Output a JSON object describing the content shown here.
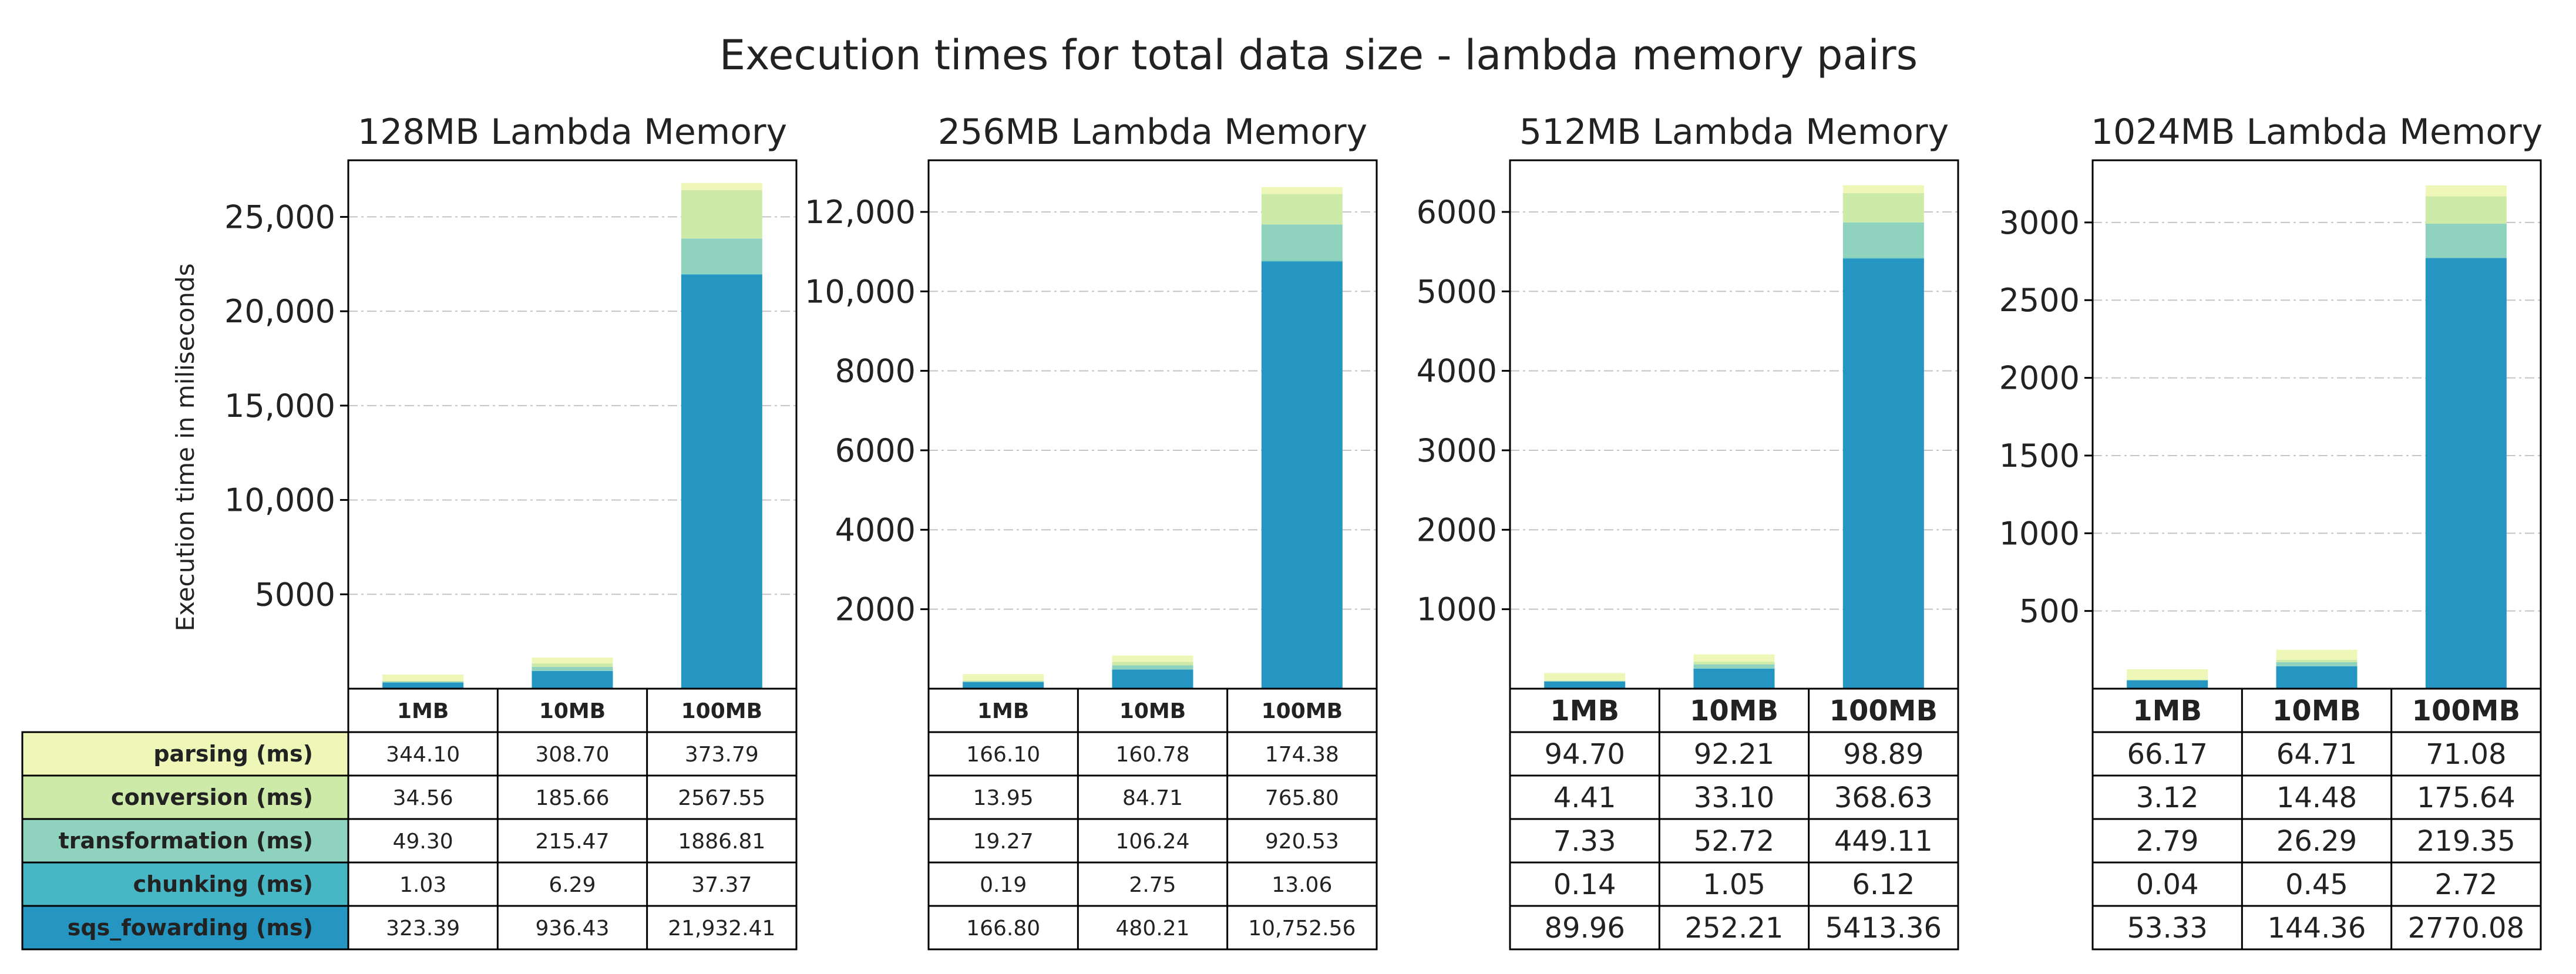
{
  "chart_data": {
    "type": "bar",
    "stacked": true,
    "title": "Execution times for total data size - lambda memory pairs",
    "ylabel": "Execution time in miliseconds",
    "categories": [
      "1MB",
      "10MB",
      "100MB"
    ],
    "stages": [
      "parsing (ms)",
      "conversion (ms)",
      "transformation (ms)",
      "chunking (ms)",
      "sqs_fowarding (ms)"
    ],
    "colors": {
      "parsing (ms)": "#eef7b8",
      "conversion (ms)": "#cdeaa9",
      "transformation (ms)": "#8fd2bd",
      "chunking (ms)": "#47b6c5",
      "sqs_fowarding (ms)": "#2596c1"
    },
    "panels": [
      {
        "title": "128MB Lambda Memory",
        "ylim": [
          0,
          28000
        ],
        "yticks": [
          5000,
          10000,
          15000,
          20000,
          25000
        ],
        "ytick_labels": [
          "5000",
          "10,000",
          "15,000",
          "20,000",
          "25,000"
        ],
        "series": [
          {
            "name": "sqs_fowarding (ms)",
            "values": [
              323.39,
              936.43,
              21932.41
            ],
            "labels": [
              "323.39",
              "936.43",
              "21,932.41"
            ]
          },
          {
            "name": "chunking (ms)",
            "values": [
              1.03,
              6.29,
              37.37
            ],
            "labels": [
              "1.03",
              "6.29",
              "37.37"
            ]
          },
          {
            "name": "transformation (ms)",
            "values": [
              49.3,
              215.47,
              1886.81
            ],
            "labels": [
              "49.30",
              "215.47",
              "1886.81"
            ]
          },
          {
            "name": "conversion (ms)",
            "values": [
              34.56,
              185.66,
              2567.55
            ],
            "labels": [
              "34.56",
              "185.66",
              "2567.55"
            ]
          },
          {
            "name": "parsing (ms)",
            "values": [
              344.1,
              308.7,
              373.79
            ],
            "labels": [
              "344.10",
              "308.70",
              "373.79"
            ]
          }
        ]
      },
      {
        "title": "256MB Lambda Memory",
        "ylim": [
          0,
          13300
        ],
        "yticks": [
          2000,
          4000,
          6000,
          8000,
          10000,
          12000
        ],
        "ytick_labels": [
          "2000",
          "4000",
          "6000",
          "8000",
          "10,000",
          "12,000"
        ],
        "series": [
          {
            "name": "sqs_fowarding (ms)",
            "values": [
              166.8,
              480.21,
              10752.56
            ],
            "labels": [
              "166.80",
              "480.21",
              "10,752.56"
            ]
          },
          {
            "name": "chunking (ms)",
            "values": [
              0.19,
              2.75,
              13.06
            ],
            "labels": [
              "0.19",
              "2.75",
              "13.06"
            ]
          },
          {
            "name": "transformation (ms)",
            "values": [
              19.27,
              106.24,
              920.53
            ],
            "labels": [
              "19.27",
              "106.24",
              "920.53"
            ]
          },
          {
            "name": "conversion (ms)",
            "values": [
              13.95,
              84.71,
              765.8
            ],
            "labels": [
              "13.95",
              "84.71",
              "765.80"
            ]
          },
          {
            "name": "parsing (ms)",
            "values": [
              166.1,
              160.78,
              174.38
            ],
            "labels": [
              "166.10",
              "160.78",
              "174.38"
            ]
          }
        ]
      },
      {
        "title": "512MB Lambda Memory",
        "ylim": [
          0,
          6650
        ],
        "yticks": [
          1000,
          2000,
          3000,
          4000,
          5000,
          6000
        ],
        "ytick_labels": [
          "1000",
          "2000",
          "3000",
          "4000",
          "5000",
          "6000"
        ],
        "series": [
          {
            "name": "sqs_fowarding (ms)",
            "values": [
              89.96,
              252.21,
              5413.36
            ],
            "labels": [
              "89.96",
              "252.21",
              "5413.36"
            ]
          },
          {
            "name": "chunking (ms)",
            "values": [
              0.14,
              1.05,
              6.12
            ],
            "labels": [
              "0.14",
              "1.05",
              "6.12"
            ]
          },
          {
            "name": "transformation (ms)",
            "values": [
              7.33,
              52.72,
              449.11
            ],
            "labels": [
              "7.33",
              "52.72",
              "449.11"
            ]
          },
          {
            "name": "conversion (ms)",
            "values": [
              4.41,
              33.1,
              368.63
            ],
            "labels": [
              "4.41",
              "33.10",
              "368.63"
            ]
          },
          {
            "name": "parsing (ms)",
            "values": [
              94.7,
              92.21,
              98.89
            ],
            "labels": [
              "94.70",
              "92.21",
              "98.89"
            ]
          }
        ]
      },
      {
        "title": "1024MB Lambda Memory",
        "ylim": [
          0,
          3400
        ],
        "yticks": [
          500,
          1000,
          1500,
          2000,
          2500,
          3000
        ],
        "ytick_labels": [
          "500",
          "1000",
          "1500",
          "2000",
          "2500",
          "3000"
        ],
        "series": [
          {
            "name": "sqs_fowarding (ms)",
            "values": [
              53.33,
              144.36,
              2770.08
            ],
            "labels": [
              "53.33",
              "144.36",
              "2770.08"
            ]
          },
          {
            "name": "chunking (ms)",
            "values": [
              0.04,
              0.45,
              2.72
            ],
            "labels": [
              "0.04",
              "0.45",
              "2.72"
            ]
          },
          {
            "name": "transformation (ms)",
            "values": [
              2.79,
              26.29,
              219.35
            ],
            "labels": [
              "2.79",
              "26.29",
              "219.35"
            ]
          },
          {
            "name": "conversion (ms)",
            "values": [
              3.12,
              14.48,
              175.64
            ],
            "labels": [
              "3.12",
              "14.48",
              "175.64"
            ]
          },
          {
            "name": "parsing (ms)",
            "values": [
              66.17,
              64.71,
              71.08
            ],
            "labels": [
              "66.17",
              "64.71",
              "71.08"
            ]
          }
        ]
      }
    ]
  }
}
